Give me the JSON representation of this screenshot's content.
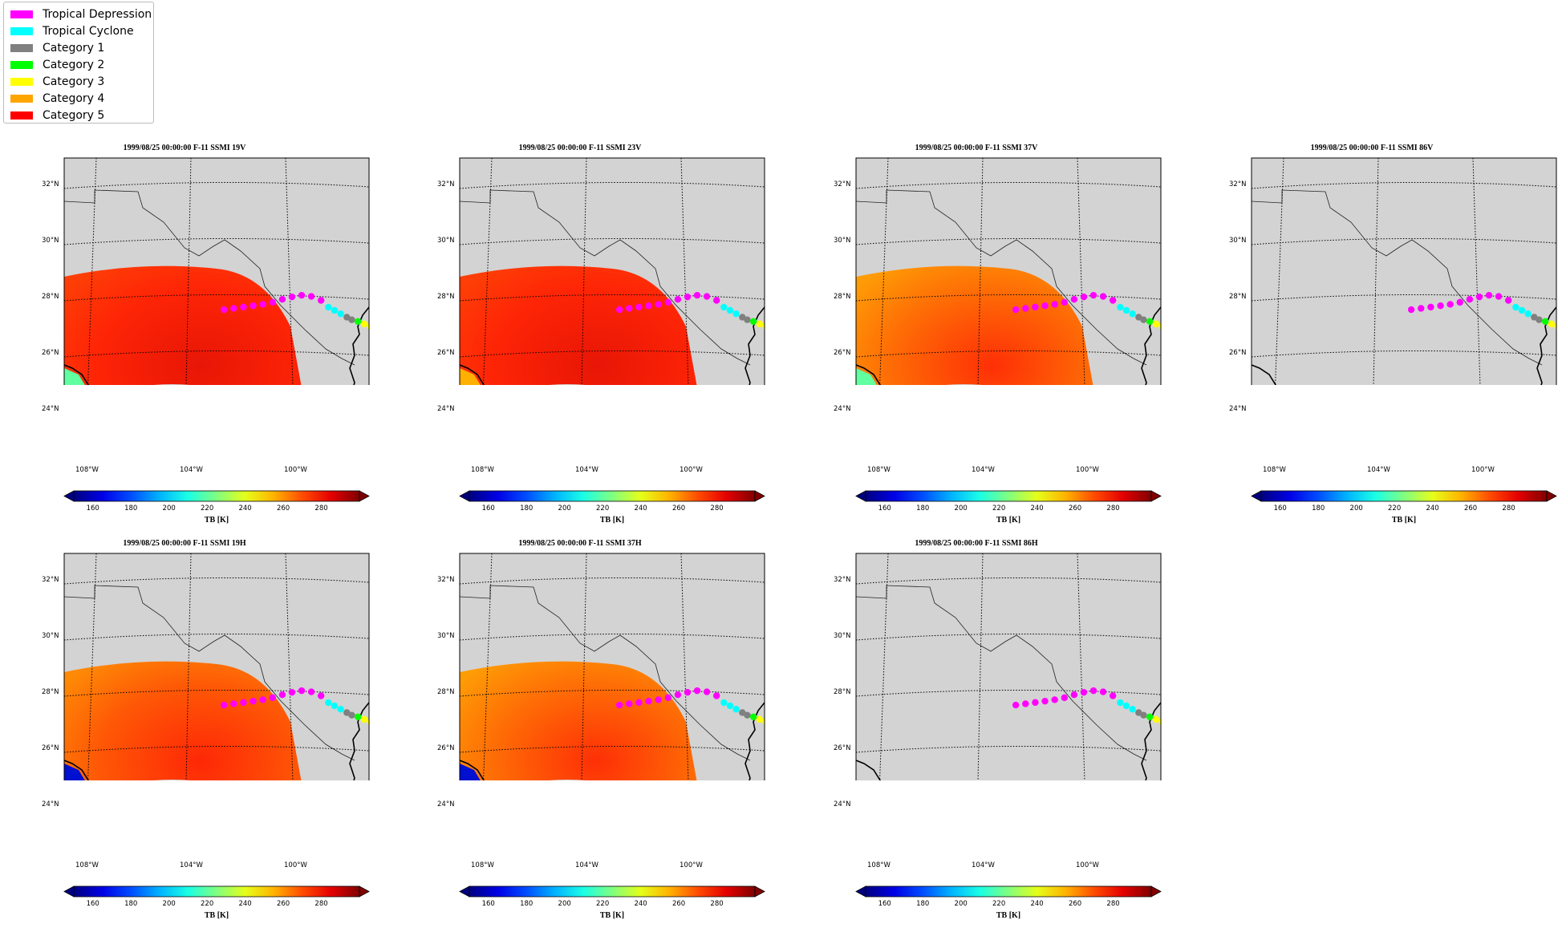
{
  "legend": [
    {
      "label": "Tropical Depression",
      "color": "#ff00ff"
    },
    {
      "label": "Tropical Cyclone",
      "color": "#00ffff"
    },
    {
      "label": "Category 1",
      "color": "#808080"
    },
    {
      "label": "Category 2",
      "color": "#00ff00"
    },
    {
      "label": "Category 3",
      "color": "#ffff00"
    },
    {
      "label": "Category 4",
      "color": "#ffa500"
    },
    {
      "label": "Category 5",
      "color": "#ff0000"
    }
  ],
  "lat_labels": [
    "32°N",
    "30°N",
    "28°N",
    "26°N",
    "24°N"
  ],
  "lon_labels": [
    "108°W",
    "104°W",
    "100°W"
  ],
  "colorbar": {
    "label": "TB [K]",
    "ticks": [
      "160",
      "180",
      "200",
      "220",
      "240",
      "260",
      "280"
    ],
    "range": [
      150,
      300
    ],
    "colormap": "jet"
  },
  "storm_track": {
    "points": [
      {
        "lon": -103.0,
        "lat": 27.45,
        "cat": "Tropical Depression"
      },
      {
        "lon": -102.6,
        "lat": 27.5,
        "cat": "Tropical Depression"
      },
      {
        "lon": -102.2,
        "lat": 27.55,
        "cat": "Tropical Depression"
      },
      {
        "lon": -101.8,
        "lat": 27.6,
        "cat": "Tropical Depression"
      },
      {
        "lon": -101.4,
        "lat": 27.65,
        "cat": "Tropical Depression"
      },
      {
        "lon": -101.0,
        "lat": 27.72,
        "cat": "Tropical Depression"
      },
      {
        "lon": -100.6,
        "lat": 27.82,
        "cat": "Tropical Depression"
      },
      {
        "lon": -100.2,
        "lat": 27.9,
        "cat": "Tropical Depression"
      },
      {
        "lon": -99.8,
        "lat": 27.95,
        "cat": "Tropical Depression"
      },
      {
        "lon": -99.4,
        "lat": 27.9,
        "cat": "Tropical Depression"
      },
      {
        "lon": -99.0,
        "lat": 27.75,
        "cat": "Tropical Depression"
      },
      {
        "lon": -98.7,
        "lat": 27.5,
        "cat": "Tropical Cyclone"
      },
      {
        "lon": -98.45,
        "lat": 27.38,
        "cat": "Tropical Cyclone"
      },
      {
        "lon": -98.2,
        "lat": 27.25,
        "cat": "Tropical Cyclone"
      },
      {
        "lon": -97.95,
        "lat": 27.12,
        "cat": "Category 1"
      },
      {
        "lon": -97.75,
        "lat": 27.02,
        "cat": "Category 1"
      },
      {
        "lon": -97.5,
        "lat": 26.95,
        "cat": "Category 2"
      },
      {
        "lon": -97.25,
        "lat": 26.85,
        "cat": "Category 3"
      },
      {
        "lon": -97.0,
        "lat": 26.75,
        "cat": "Category 3"
      }
    ]
  },
  "panels": [
    {
      "title": "1999/08/25 00:00:00  F-11 SSMI 19V",
      "swath": true,
      "variant": "19V"
    },
    {
      "title": "1999/08/25 00:00:00  F-11 SSMI 23V",
      "swath": true,
      "variant": "23V"
    },
    {
      "title": "1999/08/25 00:00:00  F-11 SSMI 37V",
      "swath": true,
      "variant": "37V"
    },
    {
      "title": "1999/08/25 00:00:00  F-11 SSMI 86V",
      "swath": false,
      "variant": "86V"
    },
    {
      "title": "1999/08/25 00:00:00  F-11 SSMI 19H",
      "swath": true,
      "variant": "19H"
    },
    {
      "title": "1999/08/25 00:00:00  F-11 SSMI 37H",
      "swath": true,
      "variant": "37H"
    },
    {
      "title": "1999/08/25 00:00:00  F-11 SSMI 86H",
      "swath": false,
      "variant": "86H"
    }
  ]
}
